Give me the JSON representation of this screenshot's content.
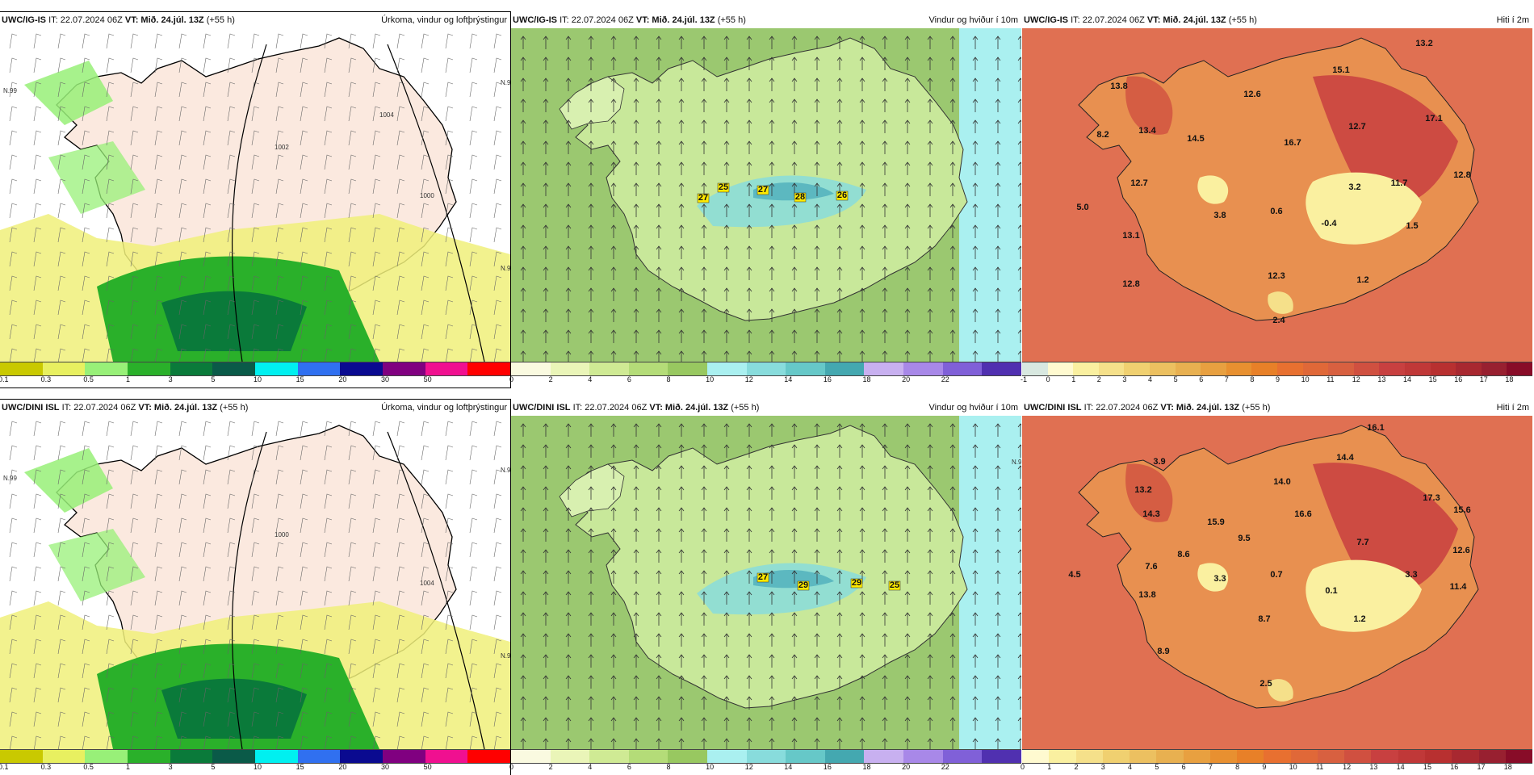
{
  "panels": [
    {
      "model": "UWC/IG-IS",
      "it": "IT: 22.07.2024 06Z",
      "vt": "VT: Mið. 24.júl. 13Z",
      "lead": "(+55 h)",
      "product": "Úrkoma, vindur og loftþrýstingur",
      "type": "precip",
      "legend_ticks": [
        "0.1",
        "0.3",
        "0.5",
        "1",
        "3",
        "5",
        "10",
        "15",
        "20",
        "30",
        "50"
      ],
      "legend_colors": [
        "#c9c900",
        "#e8f060",
        "#98f078",
        "#2ab02a",
        "#0a7a3a",
        "#0a5a48",
        "#00f0f0",
        "#3070f0",
        "#0a0a90",
        "#800080",
        "#f01090",
        "#ff0000"
      ],
      "isobars": [
        "1002",
        "1000",
        "1004"
      ],
      "lat_labels": [
        "N.99",
        "N.99",
        "N.99"
      ],
      "values": []
    },
    {
      "model": "UWC/IG-IS",
      "it": "IT: 22.07.2024 06Z",
      "vt": "VT: Mið. 24.júl. 13Z",
      "lead": "(+55 h)",
      "product": "Vindur og hviður í 10m",
      "type": "wind",
      "legend_ticks": [
        "0",
        "2",
        "4",
        "6",
        "8",
        "10",
        "12",
        "14",
        "16",
        "18",
        "20",
        "22"
      ],
      "legend_colors": [
        "#fafae0",
        "#eaf5b8",
        "#cfea94",
        "#b4dc78",
        "#98c860",
        "#aaf0f0",
        "#88dcdc",
        "#66c8c8",
        "#44a8b0",
        "#c8b0f0",
        "#a888e8",
        "#8060d8",
        "#5030b0"
      ],
      "isobars": [],
      "lat_labels": [],
      "values": [
        "25",
        "27",
        "27",
        "28",
        "26"
      ]
    },
    {
      "model": "UWC/IG-IS",
      "it": "IT: 22.07.2024 06Z",
      "vt": "VT: Mið. 24.júl. 13Z",
      "lead": "(+55 h)",
      "product": "Hiti í 2m",
      "type": "temp",
      "legend_ticks": [
        "-1",
        "0",
        "1",
        "2",
        "3",
        "4",
        "5",
        "6",
        "7",
        "8",
        "9",
        "10",
        "11",
        "12",
        "13",
        "14",
        "15",
        "16",
        "17",
        "18"
      ],
      "legend_colors": [
        "#d8e8e0",
        "#fffad0",
        "#faf0a0",
        "#f5e08a",
        "#f0d070",
        "#ecc060",
        "#e8b050",
        "#e8a040",
        "#e89030",
        "#e88028",
        "#e87030",
        "#e06838",
        "#d86040",
        "#d05040",
        "#c84040",
        "#c03838",
        "#b83030",
        "#a82830",
        "#982030",
        "#880c28"
      ],
      "isobars": [],
      "lat_labels": [],
      "values": [
        "13.2",
        "13.8",
        "15.1",
        "12.6",
        "8.2",
        "13.4",
        "14.5",
        "16.7",
        "12.7",
        "17.1",
        "12.8",
        "12.7",
        "3.2",
        "11.7",
        "5.0",
        "3.8",
        "0.6",
        "-0.4",
        "1.5",
        "13.1",
        "12.3",
        "1.2",
        "12.8",
        "2.4"
      ]
    },
    {
      "model": "UWC/DINI ISL",
      "it": "IT: 22.07.2024 06Z",
      "vt": "VT: Mið. 24.júl. 13Z",
      "lead": "(+55 h)",
      "product": "Úrkoma, vindur og loftþrýstingur",
      "type": "precip",
      "legend_ticks": [
        "0.1",
        "0.3",
        "0.5",
        "1",
        "3",
        "5",
        "10",
        "15",
        "20",
        "30",
        "50"
      ],
      "legend_colors": [
        "#c9c900",
        "#e8f060",
        "#98f078",
        "#2ab02a",
        "#0a7a3a",
        "#0a5a48",
        "#00f0f0",
        "#3070f0",
        "#0a0a90",
        "#800080",
        "#f01090",
        "#ff0000"
      ],
      "isobars": [
        "1000",
        "1004"
      ],
      "lat_labels": [
        "N.99",
        "N.99",
        "N.99"
      ],
      "values": []
    },
    {
      "model": "UWC/DINI ISL",
      "it": "IT: 22.07.2024 06Z",
      "vt": "VT: Mið. 24.júl. 13Z",
      "lead": "(+55 h)",
      "product": "Vindur og hviður í 10m",
      "type": "wind",
      "legend_ticks": [
        "0",
        "2",
        "4",
        "6",
        "8",
        "10",
        "12",
        "14",
        "16",
        "18",
        "20",
        "22"
      ],
      "legend_colors": [
        "#fafae0",
        "#eaf5b8",
        "#cfea94",
        "#b4dc78",
        "#98c860",
        "#aaf0f0",
        "#88dcdc",
        "#66c8c8",
        "#44a8b0",
        "#c8b0f0",
        "#a888e8",
        "#8060d8",
        "#5030b0"
      ],
      "isobars": [],
      "lat_labels": [
        "N.99"
      ],
      "values": [
        "27",
        "29",
        "29",
        "25"
      ]
    },
    {
      "model": "UWC/DINI ISL",
      "it": "IT: 22.07.2024 06Z",
      "vt": "VT: Mið. 24.júl. 13Z",
      "lead": "(+55 h)",
      "product": "Hiti í 2m",
      "type": "temp",
      "legend_ticks": [
        "0",
        "1",
        "2",
        "3",
        "4",
        "5",
        "6",
        "7",
        "8",
        "9",
        "10",
        "11",
        "12",
        "13",
        "14",
        "15",
        "16",
        "17",
        "18"
      ],
      "legend_colors": [
        "#fffad0",
        "#faf0a0",
        "#f5e08a",
        "#f0d070",
        "#ecc060",
        "#e8b050",
        "#e8a040",
        "#e89030",
        "#e88028",
        "#e87030",
        "#e06838",
        "#d86040",
        "#d05040",
        "#c84040",
        "#c03838",
        "#b83030",
        "#a82830",
        "#982030",
        "#880c28"
      ],
      "isobars": [],
      "lat_labels": [],
      "values": [
        "16.1",
        "3.9",
        "14.4",
        "13.2",
        "14.0",
        "14.3",
        "15.9",
        "16.6",
        "17.3",
        "15.6",
        "9.5",
        "7.7",
        "8.6",
        "12.6",
        "7.6",
        "4.5",
        "3.3",
        "0.7",
        "3.3",
        "0.1",
        "11.4",
        "13.8",
        "8.7",
        "1.2",
        "8.9",
        "2.5"
      ]
    }
  ]
}
